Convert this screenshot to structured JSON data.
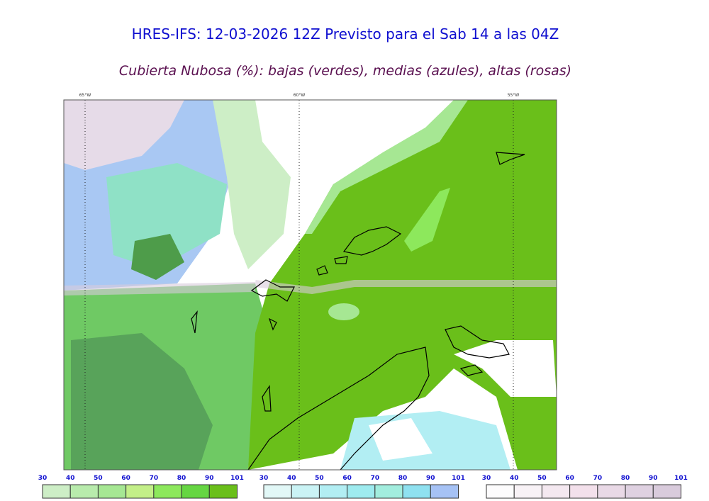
{
  "header": {
    "title": "HRES-IFS: 12-03-2026 12Z Previsto para el Sab 14 a las 04Z",
    "subtitle": "Cubierta Nubosa (%): bajas (verdes), medias (azules), altas (rosas)"
  },
  "map": {
    "longitudes": [
      "65°W",
      "60°W",
      "55°W"
    ]
  },
  "colorbars": [
    {
      "ticks": [
        30,
        40,
        50,
        60,
        70,
        80,
        90,
        101
      ],
      "colors": [
        "#cdeec6",
        "#b8ebac",
        "#a6e793",
        "#c3ef88",
        "#8de85c",
        "#66d642",
        "#6abf1a"
      ]
    },
    {
      "ticks": [
        30,
        40,
        50,
        60,
        70,
        80,
        90,
        101
      ],
      "colors": [
        "#e2f8f7",
        "#caf3f5",
        "#b2eef3",
        "#9eebef",
        "#a2edde",
        "#8fe1f0",
        "#a6c2f5"
      ]
    },
    {
      "ticks": [
        30,
        40,
        50,
        60,
        70,
        80,
        90,
        101
      ],
      "colors": [
        "#fdfcfd",
        "#f8f2f6",
        "#f4e8f0",
        "#f3e0eb",
        "#e9d9e6",
        "#dfd1e1",
        "#d9cbdc"
      ]
    }
  ]
}
